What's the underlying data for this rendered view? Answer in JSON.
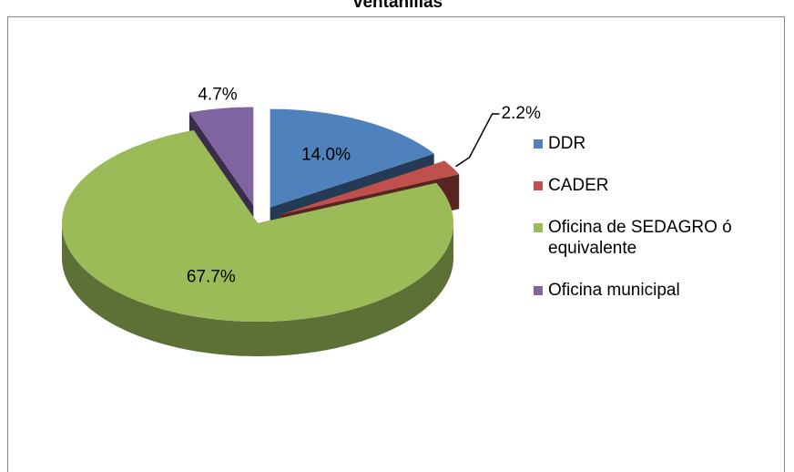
{
  "chart_data": {
    "type": "pie",
    "title": "ventanillas",
    "categories": [
      "DDR",
      "CADER",
      "Oficina de SEDAGRO ó equivalente",
      "Oficina municipal"
    ],
    "values": [
      14.0,
      2.2,
      67.7,
      4.7
    ],
    "value_labels": [
      "14.0%",
      "2.2%",
      "67.7%",
      "4.7%"
    ],
    "colors": [
      "#4f81bd",
      "#c0504d",
      "#9bbb59",
      "#8064a2"
    ],
    "legend": "right"
  }
}
